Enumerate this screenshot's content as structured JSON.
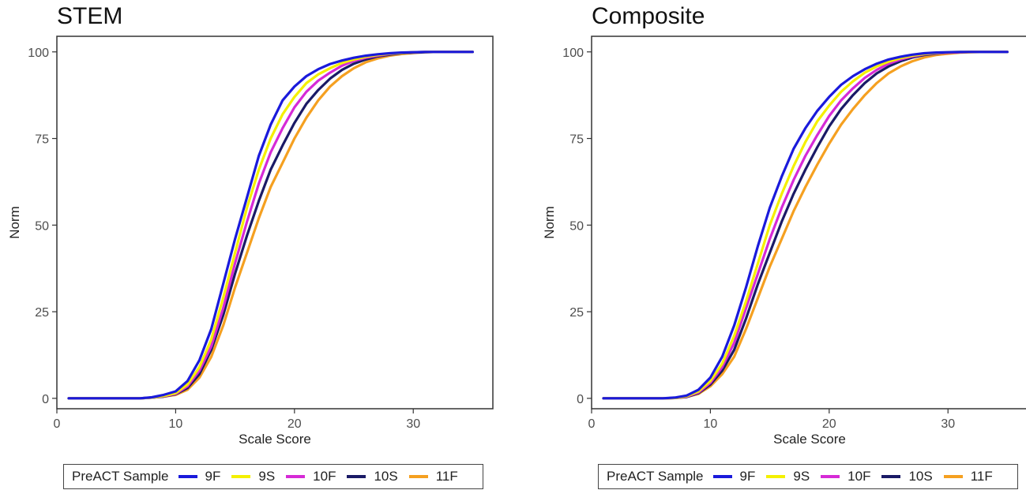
{
  "chart_data": [
    {
      "type": "line",
      "title": "STEM",
      "xlabel": "Scale Score",
      "ylabel": "Norm",
      "xlim": [
        0,
        36.7
      ],
      "ylim": [
        -3,
        104.5
      ],
      "xticks": [
        0,
        10,
        20,
        30
      ],
      "yticks": [
        0,
        25,
        50,
        75,
        100
      ],
      "grid": false,
      "legend_position": "bottom",
      "legend_title": "PreACT Sample",
      "series": [
        {
          "name": "9F",
          "color": "#1a1adb",
          "x": [
            1,
            2,
            3,
            4,
            5,
            6,
            7,
            8,
            9,
            10,
            11,
            12,
            13,
            14,
            15,
            16,
            17,
            18,
            19,
            20,
            21,
            22,
            23,
            24,
            25,
            26,
            27,
            28,
            29,
            30,
            31,
            32,
            33,
            34,
            35
          ],
          "y": [
            0,
            0,
            0,
            0,
            0,
            0,
            0,
            0.3,
            1,
            2,
            5,
            11,
            20,
            33,
            46,
            58,
            70,
            79,
            86,
            90,
            93,
            95,
            96.5,
            97.5,
            98.3,
            98.9,
            99.3,
            99.6,
            99.8,
            99.9,
            100,
            100,
            100,
            100,
            100
          ]
        },
        {
          "name": "9S",
          "color": "#f4f000",
          "x": [
            1,
            2,
            3,
            4,
            5,
            6,
            7,
            8,
            9,
            10,
            11,
            12,
            13,
            14,
            15,
            16,
            17,
            18,
            19,
            20,
            21,
            22,
            23,
            24,
            25,
            26,
            27,
            28,
            29,
            30,
            31,
            32,
            33,
            34,
            35
          ],
          "y": [
            0,
            0,
            0,
            0,
            0,
            0,
            0,
            0.2,
            0.7,
            1.5,
            4,
            9,
            17,
            29,
            42,
            55,
            66,
            75,
            82,
            87,
            91,
            93.5,
            95.3,
            96.8,
            97.8,
            98.6,
            99.1,
            99.5,
            99.7,
            99.9,
            100,
            100,
            100,
            100,
            100
          ]
        },
        {
          "name": "10F",
          "color": "#d62ad6",
          "x": [
            1,
            2,
            3,
            4,
            5,
            6,
            7,
            8,
            9,
            10,
            11,
            12,
            13,
            14,
            15,
            16,
            17,
            18,
            19,
            20,
            21,
            22,
            23,
            24,
            25,
            26,
            27,
            28,
            29,
            30,
            31,
            32,
            33,
            34,
            35
          ],
          "y": [
            0,
            0,
            0,
            0,
            0,
            0,
            0,
            0.2,
            0.6,
            1.3,
            3.5,
            8,
            15,
            26,
            39,
            51,
            62,
            71,
            78,
            84,
            88.5,
            91.7,
            94,
            96,
            97.4,
            98.3,
            98.9,
            99.4,
            99.7,
            99.9,
            100,
            100,
            100,
            100,
            100
          ]
        },
        {
          "name": "10S",
          "color": "#1a1a66",
          "x": [
            1,
            2,
            3,
            4,
            5,
            6,
            7,
            8,
            9,
            10,
            11,
            12,
            13,
            14,
            15,
            16,
            17,
            18,
            19,
            20,
            21,
            22,
            23,
            24,
            25,
            26,
            27,
            28,
            29,
            30,
            31,
            32,
            33,
            34,
            35
          ],
          "y": [
            0,
            0,
            0,
            0,
            0,
            0,
            0,
            0.2,
            0.5,
            1.2,
            3,
            7,
            14,
            24,
            36,
            47,
            57,
            66,
            73,
            79.5,
            85,
            89,
            92.3,
            94.8,
            96.6,
            97.8,
            98.7,
            99.2,
            99.6,
            99.8,
            99.9,
            100,
            100,
            100,
            100
          ]
        },
        {
          "name": "11F",
          "color": "#f5a020",
          "x": [
            1,
            2,
            3,
            4,
            5,
            6,
            7,
            8,
            9,
            10,
            11,
            12,
            13,
            14,
            15,
            16,
            17,
            18,
            19,
            20,
            21,
            22,
            23,
            24,
            25,
            26,
            27,
            28,
            29,
            30,
            31,
            32,
            33,
            34,
            35
          ],
          "y": [
            0,
            0,
            0,
            0,
            0,
            0,
            0,
            0.2,
            0.5,
            1,
            2.5,
            6,
            12,
            21,
            32,
            42,
            52,
            61,
            68,
            75,
            81,
            86,
            90,
            93,
            95.3,
            97,
            98.1,
            98.9,
            99.4,
            99.7,
            99.9,
            100,
            100,
            100,
            100
          ]
        }
      ]
    },
    {
      "type": "line",
      "title": "Composite",
      "xlabel": "Scale Score",
      "ylabel": "Norm",
      "xlim": [
        0,
        36.7
      ],
      "ylim": [
        -3,
        104.5
      ],
      "xticks": [
        0,
        10,
        20,
        30
      ],
      "yticks": [
        0,
        25,
        50,
        75,
        100
      ],
      "grid": false,
      "legend_position": "bottom",
      "legend_title": "PreACT Sample",
      "series": [
        {
          "name": "9F",
          "color": "#1a1adb",
          "x": [
            1,
            2,
            3,
            4,
            5,
            6,
            7,
            8,
            9,
            10,
            11,
            12,
            13,
            14,
            15,
            16,
            17,
            18,
            19,
            20,
            21,
            22,
            23,
            24,
            25,
            26,
            27,
            28,
            29,
            30,
            31,
            32,
            33,
            34,
            35
          ],
          "y": [
            0,
            0,
            0,
            0,
            0,
            0,
            0.2,
            0.8,
            2.5,
            6,
            12,
            21,
            32,
            44,
            55,
            64,
            72,
            78,
            83,
            87,
            90.5,
            93,
            95,
            96.6,
            97.8,
            98.6,
            99.2,
            99.6,
            99.8,
            99.9,
            100,
            100,
            100,
            100,
            100
          ]
        },
        {
          "name": "9S",
          "color": "#f4f000",
          "x": [
            1,
            2,
            3,
            4,
            5,
            6,
            7,
            8,
            9,
            10,
            11,
            12,
            13,
            14,
            15,
            16,
            17,
            18,
            19,
            20,
            21,
            22,
            23,
            24,
            25,
            26,
            27,
            28,
            29,
            30,
            31,
            32,
            33,
            34,
            35
          ],
          "y": [
            0,
            0,
            0,
            0,
            0,
            0,
            0.1,
            0.6,
            2,
            5,
            10,
            18,
            28,
            39,
            50,
            59,
            67,
            74,
            80,
            84.5,
            88.5,
            91.5,
            94,
            95.8,
            97.2,
            98.2,
            98.9,
            99.4,
            99.7,
            99.9,
            100,
            100,
            100,
            100,
            100
          ]
        },
        {
          "name": "10F",
          "color": "#d62ad6",
          "x": [
            1,
            2,
            3,
            4,
            5,
            6,
            7,
            8,
            9,
            10,
            11,
            12,
            13,
            14,
            15,
            16,
            17,
            18,
            19,
            20,
            21,
            22,
            23,
            24,
            25,
            26,
            27,
            28,
            29,
            30,
            31,
            32,
            33,
            34,
            35
          ],
          "y": [
            0,
            0,
            0,
            0,
            0,
            0,
            0.1,
            0.5,
            1.7,
            4.5,
            9,
            16,
            26,
            36,
            46,
            55,
            63,
            70,
            76,
            81.5,
            86,
            89.5,
            92.5,
            94.8,
            96.6,
            97.8,
            98.7,
            99.3,
            99.6,
            99.8,
            99.9,
            100,
            100,
            100,
            100
          ]
        },
        {
          "name": "10S",
          "color": "#1a1a66",
          "x": [
            1,
            2,
            3,
            4,
            5,
            6,
            7,
            8,
            9,
            10,
            11,
            12,
            13,
            14,
            15,
            16,
            17,
            18,
            19,
            20,
            21,
            22,
            23,
            24,
            25,
            26,
            27,
            28,
            29,
            30,
            31,
            32,
            33,
            34,
            35
          ],
          "y": [
            0,
            0,
            0,
            0,
            0,
            0,
            0.1,
            0.4,
            1.5,
            4,
            8,
            14,
            23,
            33,
            42,
            51,
            59,
            66,
            72.5,
            78.5,
            83.5,
            87.5,
            91,
            93.8,
            95.8,
            97.3,
            98.4,
            99.1,
            99.5,
            99.8,
            99.9,
            100,
            100,
            100,
            100
          ]
        },
        {
          "name": "11F",
          "color": "#f5a020",
          "x": [
            1,
            2,
            3,
            4,
            5,
            6,
            7,
            8,
            9,
            10,
            11,
            12,
            13,
            14,
            15,
            16,
            17,
            18,
            19,
            20,
            21,
            22,
            23,
            24,
            25,
            26,
            27,
            28,
            29,
            30,
            31,
            32,
            33,
            34,
            35
          ],
          "y": [
            0,
            0,
            0,
            0,
            0,
            0,
            0.1,
            0.4,
            1.3,
            3.5,
            7,
            12,
            20,
            29,
            38,
            46,
            54,
            61,
            67.5,
            73.5,
            79,
            83.5,
            87.5,
            91,
            93.8,
            95.8,
            97.3,
            98.4,
            99.1,
            99.5,
            99.8,
            99.9,
            100,
            100,
            100
          ]
        }
      ]
    }
  ]
}
